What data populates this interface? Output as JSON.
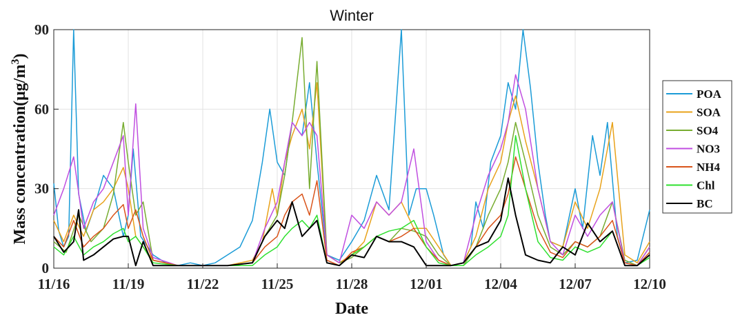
{
  "chart_data": {
    "type": "line",
    "title": "Winter",
    "xlabel": "Date",
    "ylabel": "Mass concentration(μg/m",
    "ylabel_superscript": "3",
    "ylabel_close": ")",
    "ylim": [
      0,
      90
    ],
    "yticks": [
      0,
      30,
      60,
      90
    ],
    "xlim": [
      0,
      24
    ],
    "xticks": [
      0,
      3,
      6,
      9,
      12,
      15,
      18,
      21,
      24
    ],
    "xtick_labels": [
      "11/16",
      "11/19",
      "11/22",
      "11/25",
      "11/28",
      "12/01",
      "12/04",
      "12/07",
      "12/10"
    ],
    "grid": true,
    "legend_position": "right",
    "series": [
      {
        "name": "POA",
        "color": "#1a9bd7",
        "x": [
          0.0,
          0.2,
          0.4,
          0.6,
          0.8,
          1.0,
          1.3,
          1.6,
          2.0,
          2.4,
          2.8,
          3.0,
          3.2,
          3.5,
          4.0,
          4.5,
          5.0,
          5.5,
          6.0,
          6.5,
          7.0,
          7.5,
          8.0,
          8.4,
          8.7,
          9.0,
          9.3,
          9.6,
          10.0,
          10.3,
          10.6,
          11.0,
          11.5,
          12.0,
          12.5,
          13.0,
          13.5,
          14.0,
          14.3,
          14.6,
          15.0,
          15.3,
          15.7,
          16.0,
          16.5,
          16.8,
          17.0,
          17.3,
          17.6,
          18.0,
          18.3,
          18.6,
          18.9,
          19.2,
          19.5,
          19.8,
          20.0,
          20.5,
          21.0,
          21.3,
          21.7,
          22.0,
          22.3,
          22.7,
          23.0,
          23.5,
          24.0
        ],
        "y": [
          32,
          14,
          8,
          12,
          90,
          28,
          14,
          22,
          35,
          30,
          12,
          20,
          45,
          12,
          5,
          2,
          1,
          2,
          1,
          2,
          5,
          8,
          18,
          40,
          60,
          40,
          35,
          55,
          50,
          70,
          40,
          5,
          3,
          10,
          18,
          35,
          22,
          90,
          20,
          30,
          30,
          20,
          5,
          1,
          2,
          8,
          25,
          15,
          40,
          50,
          70,
          60,
          90,
          68,
          40,
          20,
          10,
          8,
          30,
          15,
          50,
          35,
          55,
          12,
          2,
          3,
          22
        ]
      },
      {
        "name": "SOA",
        "color": "#e8a21a",
        "x": [
          0.0,
          0.4,
          0.8,
          1.2,
          1.6,
          2.0,
          2.4,
          2.8,
          3.0,
          3.3,
          3.6,
          4.0,
          5.0,
          6.0,
          7.0,
          8.0,
          8.4,
          8.8,
          9.0,
          9.3,
          9.6,
          10.0,
          10.3,
          10.6,
          11.0,
          11.5,
          12.0,
          12.5,
          13.0,
          13.5,
          14.0,
          14.5,
          15.0,
          15.5,
          16.0,
          16.5,
          17.0,
          17.5,
          18.0,
          18.3,
          18.6,
          19.0,
          19.5,
          20.0,
          20.5,
          21.0,
          21.5,
          22.0,
          22.5,
          23.0,
          23.5,
          24.0
        ],
        "y": [
          18,
          10,
          20,
          12,
          22,
          25,
          30,
          38,
          30,
          12,
          8,
          3,
          1,
          1,
          1,
          3,
          10,
          30,
          20,
          40,
          50,
          60,
          45,
          70,
          5,
          2,
          5,
          10,
          25,
          20,
          25,
          15,
          15,
          8,
          1,
          2,
          12,
          30,
          40,
          55,
          65,
          48,
          30,
          10,
          8,
          25,
          15,
          30,
          55,
          5,
          2,
          10
        ]
      },
      {
        "name": "SO4",
        "color": "#77ac30",
        "x": [
          0.0,
          0.5,
          1.0,
          1.5,
          2.0,
          2.4,
          2.8,
          3.0,
          3.3,
          3.6,
          4.0,
          5.0,
          6.0,
          7.0,
          8.0,
          8.5,
          9.0,
          9.3,
          9.6,
          10.0,
          10.3,
          10.6,
          11.0,
          11.5,
          12.0,
          12.5,
          13.0,
          13.5,
          14.0,
          14.5,
          15.0,
          15.5,
          16.0,
          16.5,
          17.0,
          17.5,
          18.0,
          18.3,
          18.6,
          19.0,
          19.5,
          20.0,
          20.5,
          21.0,
          21.5,
          22.0,
          22.5,
          23.0,
          23.5,
          24.0
        ],
        "y": [
          10,
          6,
          20,
          10,
          15,
          28,
          55,
          40,
          20,
          25,
          3,
          1,
          1,
          1,
          2,
          12,
          20,
          35,
          55,
          87,
          30,
          78,
          5,
          2,
          4,
          8,
          12,
          10,
          15,
          14,
          12,
          5,
          1,
          1,
          8,
          20,
          30,
          40,
          55,
          40,
          20,
          8,
          5,
          10,
          8,
          12,
          25,
          3,
          1,
          8
        ]
      },
      {
        "name": "NO3",
        "color": "#c04ee0",
        "x": [
          0.0,
          0.4,
          0.8,
          1.2,
          1.6,
          2.0,
          2.4,
          2.8,
          3.0,
          3.3,
          3.6,
          4.0,
          5.0,
          6.0,
          7.0,
          8.0,
          8.5,
          9.0,
          9.3,
          9.6,
          10.0,
          10.3,
          10.6,
          11.0,
          11.5,
          12.0,
          12.5,
          13.0,
          13.5,
          14.0,
          14.5,
          15.0,
          15.5,
          16.0,
          16.5,
          17.0,
          17.5,
          18.0,
          18.3,
          18.6,
          19.0,
          19.5,
          20.0,
          20.5,
          21.0,
          21.5,
          22.0,
          22.5,
          23.0,
          23.5,
          24.0
        ],
        "y": [
          20,
          30,
          42,
          15,
          25,
          30,
          40,
          50,
          20,
          62,
          15,
          4,
          1,
          1,
          1,
          2,
          15,
          25,
          40,
          55,
          50,
          55,
          50,
          5,
          2,
          20,
          15,
          25,
          20,
          25,
          45,
          10,
          3,
          1,
          2,
          20,
          35,
          45,
          55,
          73,
          60,
          30,
          10,
          5,
          20,
          12,
          20,
          25,
          2,
          1,
          8
        ]
      },
      {
        "name": "NH4",
        "color": "#d95319",
        "x": [
          0.0,
          0.4,
          0.8,
          1.2,
          1.6,
          2.0,
          2.4,
          2.8,
          3.0,
          3.3,
          3.6,
          4.0,
          5.0,
          6.0,
          7.0,
          8.0,
          8.5,
          9.0,
          9.3,
          9.6,
          10.0,
          10.3,
          10.6,
          11.0,
          11.5,
          12.0,
          12.5,
          13.0,
          13.5,
          14.0,
          14.5,
          15.0,
          15.5,
          16.0,
          16.5,
          17.0,
          17.5,
          18.0,
          18.3,
          18.6,
          19.0,
          19.5,
          20.0,
          20.5,
          21.0,
          21.5,
          22.0,
          22.5,
          23.0,
          23.5,
          24.0
        ],
        "y": [
          12,
          8,
          18,
          8,
          12,
          15,
          20,
          24,
          15,
          22,
          12,
          3,
          1,
          1,
          1,
          2,
          8,
          12,
          20,
          25,
          28,
          20,
          33,
          3,
          1,
          6,
          8,
          12,
          10,
          12,
          15,
          8,
          3,
          1,
          2,
          8,
          15,
          20,
          28,
          42,
          30,
          15,
          6,
          4,
          10,
          8,
          12,
          18,
          2,
          1,
          6
        ]
      },
      {
        "name": "Chl",
        "color": "#2ee02e",
        "x": [
          0.0,
          0.4,
          0.8,
          1.2,
          1.6,
          2.0,
          2.4,
          2.8,
          3.0,
          3.3,
          3.6,
          4.0,
          5.0,
          6.0,
          7.0,
          8.0,
          8.5,
          9.0,
          9.3,
          9.6,
          10.0,
          10.3,
          10.6,
          11.0,
          11.5,
          12.0,
          12.5,
          13.0,
          13.5,
          14.0,
          14.5,
          15.0,
          15.5,
          16.0,
          16.5,
          17.0,
          17.5,
          18.0,
          18.3,
          18.6,
          19.0,
          19.5,
          20.0,
          20.5,
          21.0,
          21.5,
          22.0,
          22.5,
          23.0,
          23.5,
          24.0
        ],
        "y": [
          8,
          5,
          12,
          5,
          8,
          10,
          13,
          15,
          10,
          12,
          8,
          2,
          1,
          1,
          1,
          1,
          5,
          8,
          12,
          15,
          18,
          15,
          20,
          2,
          1,
          5,
          8,
          12,
          14,
          15,
          18,
          8,
          2,
          1,
          1,
          5,
          8,
          12,
          20,
          50,
          30,
          10,
          4,
          3,
          8,
          6,
          8,
          14,
          1,
          1,
          4
        ]
      },
      {
        "name": "BC",
        "color": "#000000",
        "x": [
          0.0,
          0.4,
          0.8,
          1.0,
          1.2,
          1.6,
          2.0,
          2.4,
          2.8,
          3.0,
          3.3,
          3.6,
          4.0,
          5.0,
          6.0,
          7.0,
          8.0,
          8.5,
          9.0,
          9.3,
          9.6,
          10.0,
          10.3,
          10.6,
          11.0,
          11.5,
          12.0,
          12.5,
          13.0,
          13.5,
          14.0,
          14.5,
          15.0,
          15.5,
          16.0,
          16.5,
          17.0,
          17.5,
          18.0,
          18.3,
          18.6,
          19.0,
          19.5,
          20.0,
          20.5,
          21.0,
          21.5,
          22.0,
          22.5,
          23.0,
          23.5,
          24.0
        ],
        "y": [
          12,
          6,
          10,
          22,
          3,
          5,
          8,
          11,
          12,
          12,
          1,
          10,
          1,
          1,
          1,
          1,
          2,
          12,
          18,
          15,
          25,
          12,
          15,
          18,
          2,
          1,
          5,
          4,
          12,
          10,
          10,
          8,
          1,
          1,
          1,
          2,
          8,
          10,
          18,
          34,
          20,
          5,
          3,
          2,
          8,
          5,
          17,
          10,
          14,
          1,
          1,
          5
        ]
      }
    ]
  }
}
